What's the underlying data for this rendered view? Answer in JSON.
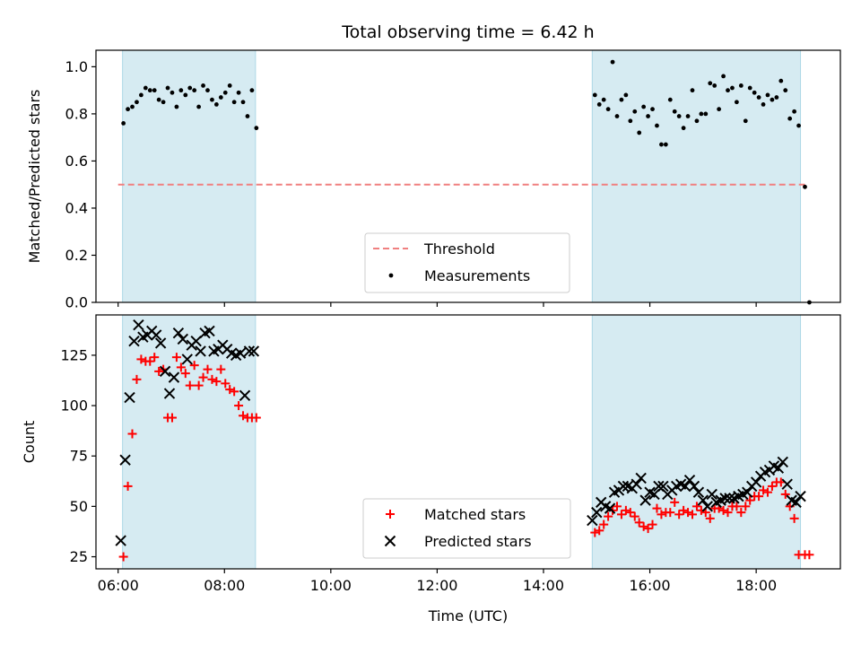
{
  "chart_data": [
    {
      "type": "scatter",
      "title": "Total observing time = 6.42 h",
      "xlabel": "",
      "ylabel": "Matched/Predicted stars",
      "ylim": [
        0,
        1.07
      ],
      "yticks": [
        "0.0",
        "0.2",
        "0.4",
        "0.6",
        "0.8",
        "1.0"
      ],
      "ytick_values": [
        0,
        0.2,
        0.4,
        0.6,
        0.8,
        1.0
      ],
      "shaded_intervals": [
        [
          "06:05",
          "08:35"
        ],
        [
          "14:55",
          "18:50"
        ]
      ],
      "shade_color": "#add8e6",
      "legend_position": "lower-center",
      "series": [
        {
          "name": "Threshold",
          "kind": "dashed-line",
          "color": "#f08080",
          "x": [
            "06:00",
            "18:55"
          ],
          "y": [
            0.5,
            0.5
          ]
        },
        {
          "name": "Measurements",
          "kind": "dots",
          "color": "#000000",
          "x": [
            "06:06",
            "06:11",
            "06:16",
            "06:21",
            "06:26",
            "06:31",
            "06:36",
            "06:41",
            "06:46",
            "06:51",
            "06:56",
            "07:01",
            "07:06",
            "07:11",
            "07:16",
            "07:21",
            "07:26",
            "07:31",
            "07:36",
            "07:41",
            "07:46",
            "07:51",
            "07:56",
            "08:01",
            "08:06",
            "08:11",
            "08:16",
            "08:21",
            "08:26",
            "08:31",
            "08:36",
            "14:58",
            "15:03",
            "15:08",
            "15:13",
            "15:18",
            "15:23",
            "15:28",
            "15:33",
            "15:38",
            "15:43",
            "15:48",
            "15:53",
            "15:58",
            "16:03",
            "16:08",
            "16:13",
            "16:18",
            "16:23",
            "16:28",
            "16:33",
            "16:38",
            "16:43",
            "16:48",
            "16:53",
            "16:58",
            "17:03",
            "17:08",
            "17:13",
            "17:18",
            "17:23",
            "17:28",
            "17:33",
            "17:38",
            "17:43",
            "17:48",
            "17:53",
            "17:58",
            "18:03",
            "18:08",
            "18:13",
            "18:18",
            "18:23",
            "18:28",
            "18:33",
            "18:38",
            "18:43",
            "18:48",
            "18:55",
            "19:00"
          ],
          "y": [
            0.76,
            0.82,
            0.83,
            0.85,
            0.88,
            0.91,
            0.9,
            0.9,
            0.86,
            0.85,
            0.91,
            0.89,
            0.83,
            0.9,
            0.88,
            0.91,
            0.9,
            0.83,
            0.92,
            0.9,
            0.86,
            0.84,
            0.87,
            0.89,
            0.92,
            0.85,
            0.89,
            0.85,
            0.79,
            0.9,
            0.74,
            0.88,
            0.84,
            0.86,
            0.82,
            1.02,
            0.79,
            0.86,
            0.88,
            0.77,
            0.81,
            0.72,
            0.83,
            0.79,
            0.82,
            0.75,
            0.67,
            0.67,
            0.86,
            0.81,
            0.79,
            0.74,
            0.79,
            0.9,
            0.77,
            0.8,
            0.8,
            0.93,
            0.92,
            0.82,
            0.96,
            0.9,
            0.91,
            0.85,
            0.92,
            0.77,
            0.91,
            0.89,
            0.87,
            0.84,
            0.88,
            0.86,
            0.87,
            0.94,
            0.9,
            0.78,
            0.81,
            0.75,
            0.49,
            0.0
          ]
        }
      ]
    },
    {
      "type": "scatter",
      "title": "",
      "xlabel": "Time (UTC)",
      "ylabel": "Count",
      "ylim": [
        19,
        145
      ],
      "yticks": [
        "25",
        "50",
        "75",
        "100",
        "125"
      ],
      "ytick_values": [
        25,
        50,
        75,
        100,
        125
      ],
      "xticks": [
        "06:00",
        "08:00",
        "10:00",
        "12:00",
        "14:00",
        "16:00",
        "18:00"
      ],
      "xlim": [
        "05:35",
        "19:35"
      ],
      "shaded_intervals": [
        [
          "06:05",
          "08:35"
        ],
        [
          "14:55",
          "18:50"
        ]
      ],
      "shade_color": "#add8e6",
      "legend_position": "lower-center",
      "series": [
        {
          "name": "Matched stars",
          "marker": "plus",
          "color": "#ff0000",
          "x": [
            "06:06",
            "06:11",
            "06:16",
            "06:21",
            "06:26",
            "06:31",
            "06:36",
            "06:41",
            "06:46",
            "06:51",
            "06:56",
            "07:01",
            "07:06",
            "07:11",
            "07:16",
            "07:21",
            "07:26",
            "07:31",
            "07:36",
            "07:41",
            "07:46",
            "07:51",
            "07:56",
            "08:01",
            "08:06",
            "08:11",
            "08:16",
            "08:21",
            "08:26",
            "08:31",
            "08:36",
            "14:58",
            "15:03",
            "15:08",
            "15:13",
            "15:18",
            "15:23",
            "15:28",
            "15:33",
            "15:38",
            "15:43",
            "15:48",
            "15:53",
            "15:58",
            "16:03",
            "16:08",
            "16:13",
            "16:18",
            "16:23",
            "16:28",
            "16:33",
            "16:38",
            "16:43",
            "16:48",
            "16:53",
            "16:58",
            "17:03",
            "17:08",
            "17:13",
            "17:18",
            "17:23",
            "17:28",
            "17:33",
            "17:38",
            "17:43",
            "17:48",
            "17:53",
            "17:58",
            "18:03",
            "18:08",
            "18:13",
            "18:18",
            "18:23",
            "18:28",
            "18:33",
            "18:38",
            "18:43",
            "18:48",
            "18:55",
            "19:00"
          ],
          "y": [
            25,
            60,
            86,
            113,
            123,
            122,
            122,
            124,
            117,
            118,
            94,
            94,
            124,
            119,
            116,
            110,
            120,
            110,
            114,
            118,
            113,
            112,
            118,
            111,
            108,
            107,
            100,
            95,
            94,
            94,
            94,
            37,
            38,
            41,
            45,
            48,
            50,
            46,
            48,
            47,
            45,
            42,
            40,
            39,
            41,
            49,
            46,
            47,
            47,
            52,
            46,
            48,
            47,
            46,
            50,
            48,
            47,
            44,
            49,
            49,
            48,
            47,
            50,
            50,
            47,
            50,
            53,
            55,
            55,
            58,
            57,
            60,
            62,
            62,
            56,
            50,
            44,
            26,
            26,
            26
          ]
        },
        {
          "name": "Predicted stars",
          "marker": "x",
          "color": "#000000",
          "x": [
            "06:03",
            "06:08",
            "06:13",
            "06:18",
            "06:23",
            "06:28",
            "06:33",
            "06:38",
            "06:43",
            "06:48",
            "06:53",
            "06:58",
            "07:03",
            "07:08",
            "07:13",
            "07:18",
            "07:23",
            "07:28",
            "07:33",
            "07:38",
            "07:43",
            "07:48",
            "07:53",
            "07:58",
            "08:03",
            "08:08",
            "08:13",
            "08:18",
            "08:23",
            "08:28",
            "08:33",
            "14:55",
            "15:00",
            "15:05",
            "15:10",
            "15:15",
            "15:20",
            "15:25",
            "15:30",
            "15:35",
            "15:40",
            "15:45",
            "15:50",
            "15:55",
            "16:00",
            "16:05",
            "16:10",
            "16:15",
            "16:20",
            "16:25",
            "16:30",
            "16:35",
            "16:40",
            "16:45",
            "16:50",
            "16:55",
            "17:00",
            "17:05",
            "17:10",
            "17:15",
            "17:20",
            "17:25",
            "17:30",
            "17:35",
            "17:40",
            "17:45",
            "17:50",
            "17:55",
            "18:00",
            "18:05",
            "18:10",
            "18:15",
            "18:20",
            "18:25",
            "18:30",
            "18:35",
            "18:40",
            "18:45",
            "18:50"
          ],
          "y": [
            33,
            73,
            104,
            132,
            140,
            134,
            135,
            137,
            135,
            131,
            117,
            106,
            114,
            136,
            133,
            123,
            130,
            132,
            127,
            136,
            137,
            127,
            128,
            130,
            128,
            126,
            125,
            126,
            105,
            127,
            127,
            43,
            47,
            52,
            50,
            49,
            57,
            58,
            60,
            60,
            59,
            61,
            64,
            53,
            57,
            56,
            60,
            60,
            56,
            58,
            60,
            61,
            60,
            63,
            60,
            57,
            53,
            50,
            56,
            52,
            53,
            54,
            54,
            54,
            55,
            56,
            57,
            60,
            62,
            65,
            67,
            68,
            70,
            69,
            72,
            61,
            53,
            52,
            55
          ]
        }
      ]
    }
  ]
}
